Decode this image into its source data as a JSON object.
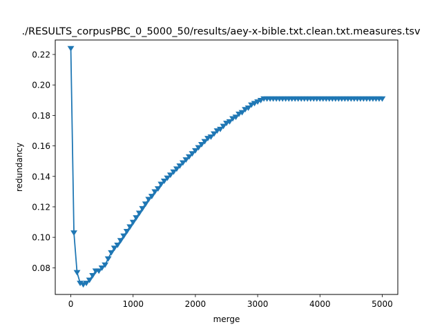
{
  "chart_data": {
    "type": "line",
    "title": "./RESULTS_corpusPBC_0_5000_50/results/aey-x-bible.txt.clean.txt.measures.tsv",
    "xlabel": "merge",
    "ylabel": "redundancy",
    "xlim": [
      -250,
      5250
    ],
    "ylim": [
      0.0625,
      0.2295
    ],
    "xticks": [
      0,
      1000,
      2000,
      3000,
      4000,
      5000
    ],
    "xtick_labels": [
      "0",
      "1000",
      "2000",
      "3000",
      "4000",
      "5000"
    ],
    "yticks": [
      0.08,
      0.1,
      0.12,
      0.14,
      0.16,
      0.18,
      0.2,
      0.22
    ],
    "ytick_labels": [
      "0.08",
      "0.10",
      "0.12",
      "0.14",
      "0.16",
      "0.18",
      "0.20",
      "0.22"
    ],
    "grid": false,
    "line_color": "#1f77b4",
    "marker": "triangle-down",
    "series": [
      {
        "name": "redundancy",
        "x": [
          0,
          50,
          100,
          150,
          200,
          250,
          300,
          350,
          400,
          450,
          500,
          550,
          600,
          650,
          700,
          750,
          800,
          850,
          900,
          950,
          1000,
          1050,
          1100,
          1150,
          1200,
          1250,
          1300,
          1350,
          1400,
          1450,
          1500,
          1550,
          1600,
          1650,
          1700,
          1750,
          1800,
          1850,
          1900,
          1950,
          2000,
          2050,
          2100,
          2150,
          2200,
          2250,
          2300,
          2350,
          2400,
          2450,
          2500,
          2550,
          2600,
          2650,
          2700,
          2750,
          2800,
          2850,
          2900,
          2950,
          3000,
          3050,
          3100,
          3150,
          3200,
          3250,
          3300,
          3350,
          3400,
          3450,
          3500,
          3550,
          3600,
          3650,
          3700,
          3750,
          3800,
          3850,
          3900,
          3950,
          4000,
          4050,
          4100,
          4150,
          4200,
          4250,
          4300,
          4350,
          4400,
          4450,
          4500,
          4550,
          4600,
          4650,
          4700,
          4750,
          4800,
          4850,
          4900,
          4950,
          5000
        ],
        "values": [
          0.224,
          0.103,
          0.077,
          0.07,
          0.069,
          0.07,
          0.072,
          0.075,
          0.078,
          0.078,
          0.08,
          0.082,
          0.086,
          0.09,
          0.093,
          0.095,
          0.098,
          0.101,
          0.104,
          0.107,
          0.11,
          0.113,
          0.116,
          0.119,
          0.122,
          0.125,
          0.127,
          0.13,
          0.132,
          0.135,
          0.137,
          0.139,
          0.141,
          0.143,
          0.145,
          0.147,
          0.149,
          0.151,
          0.153,
          0.155,
          0.157,
          0.159,
          0.161,
          0.163,
          0.165,
          0.166,
          0.168,
          0.17,
          0.171,
          0.173,
          0.175,
          0.176,
          0.178,
          0.179,
          0.181,
          0.182,
          0.184,
          0.185,
          0.187,
          0.188,
          0.189,
          0.19,
          0.191,
          0.191,
          0.191,
          0.191,
          0.191,
          0.191,
          0.191,
          0.191,
          0.191,
          0.191,
          0.191,
          0.191,
          0.191,
          0.191,
          0.191,
          0.191,
          0.191,
          0.191,
          0.191,
          0.191,
          0.191,
          0.191,
          0.191,
          0.191,
          0.191,
          0.191,
          0.191,
          0.191,
          0.191,
          0.191,
          0.191,
          0.191,
          0.191,
          0.191,
          0.191,
          0.191,
          0.191,
          0.191,
          0.191
        ]
      }
    ]
  }
}
